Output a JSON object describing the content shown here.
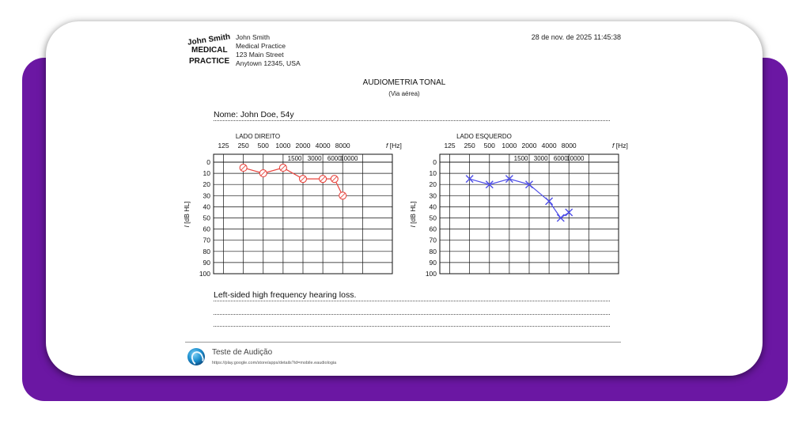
{
  "header": {
    "logo": {
      "line1": "John Smith",
      "line2": "MEDICAL",
      "line3": "PRACTICE"
    },
    "address": [
      "John Smith",
      "Medical Practice",
      "123 Main Street",
      "Anytown 12345, USA"
    ],
    "datetime": "28 de nov. de 2025 11:45:38"
  },
  "report": {
    "title": "AUDIOMETRIA TONAL",
    "subtitle": "(Via aérea)",
    "name_label": "Nome:",
    "name_value": "John Doe, 54y",
    "note": "Left-sided high frequency hearing loss."
  },
  "chart_data": [
    {
      "type": "line",
      "title": "LADO DIREITO",
      "marker": "circle",
      "color": "#e8463f",
      "x_top_ticks": [
        "125",
        "250",
        "500",
        "1000",
        "2000",
        "4000",
        "8000"
      ],
      "x_bottom_ticks": [
        "1500",
        "3000",
        "6000",
        "10000"
      ],
      "x_unit_italic": "f",
      "x_unit": "[Hz]",
      "ylabel_italic": "I",
      "ylabel": "[dB HL]",
      "y_ticks": [
        "0",
        "10",
        "20",
        "30",
        "40",
        "50",
        "60",
        "70",
        "80",
        "90",
        "100"
      ],
      "ylim": [
        0,
        100
      ],
      "y_inverted": true,
      "x": [
        250,
        500,
        1000,
        2000,
        4000,
        6000,
        8000
      ],
      "y": [
        5,
        10,
        5,
        15,
        15,
        15,
        30
      ]
    },
    {
      "type": "line",
      "title": "LADO ESQUERDO",
      "marker": "cross",
      "color": "#4d4de8",
      "x_top_ticks": [
        "125",
        "250",
        "500",
        "1000",
        "2000",
        "4000",
        "8000"
      ],
      "x_bottom_ticks": [
        "1500",
        "3000",
        "6000",
        "10000"
      ],
      "x_unit_italic": "f",
      "x_unit": "[Hz]",
      "ylabel_italic": "I",
      "ylabel": "[dB HL]",
      "y_ticks": [
        "0",
        "10",
        "20",
        "30",
        "40",
        "50",
        "60",
        "70",
        "80",
        "90",
        "100"
      ],
      "ylim": [
        0,
        100
      ],
      "y_inverted": true,
      "x": [
        250,
        500,
        1000,
        2000,
        4000,
        6000,
        8000
      ],
      "y": [
        15,
        20,
        15,
        20,
        35,
        50,
        45
      ]
    }
  ],
  "footer": {
    "app_name": "Teste de Audição",
    "app_url": "https://play.google.com/store/apps/details?id=mobile.eaudiologia"
  }
}
